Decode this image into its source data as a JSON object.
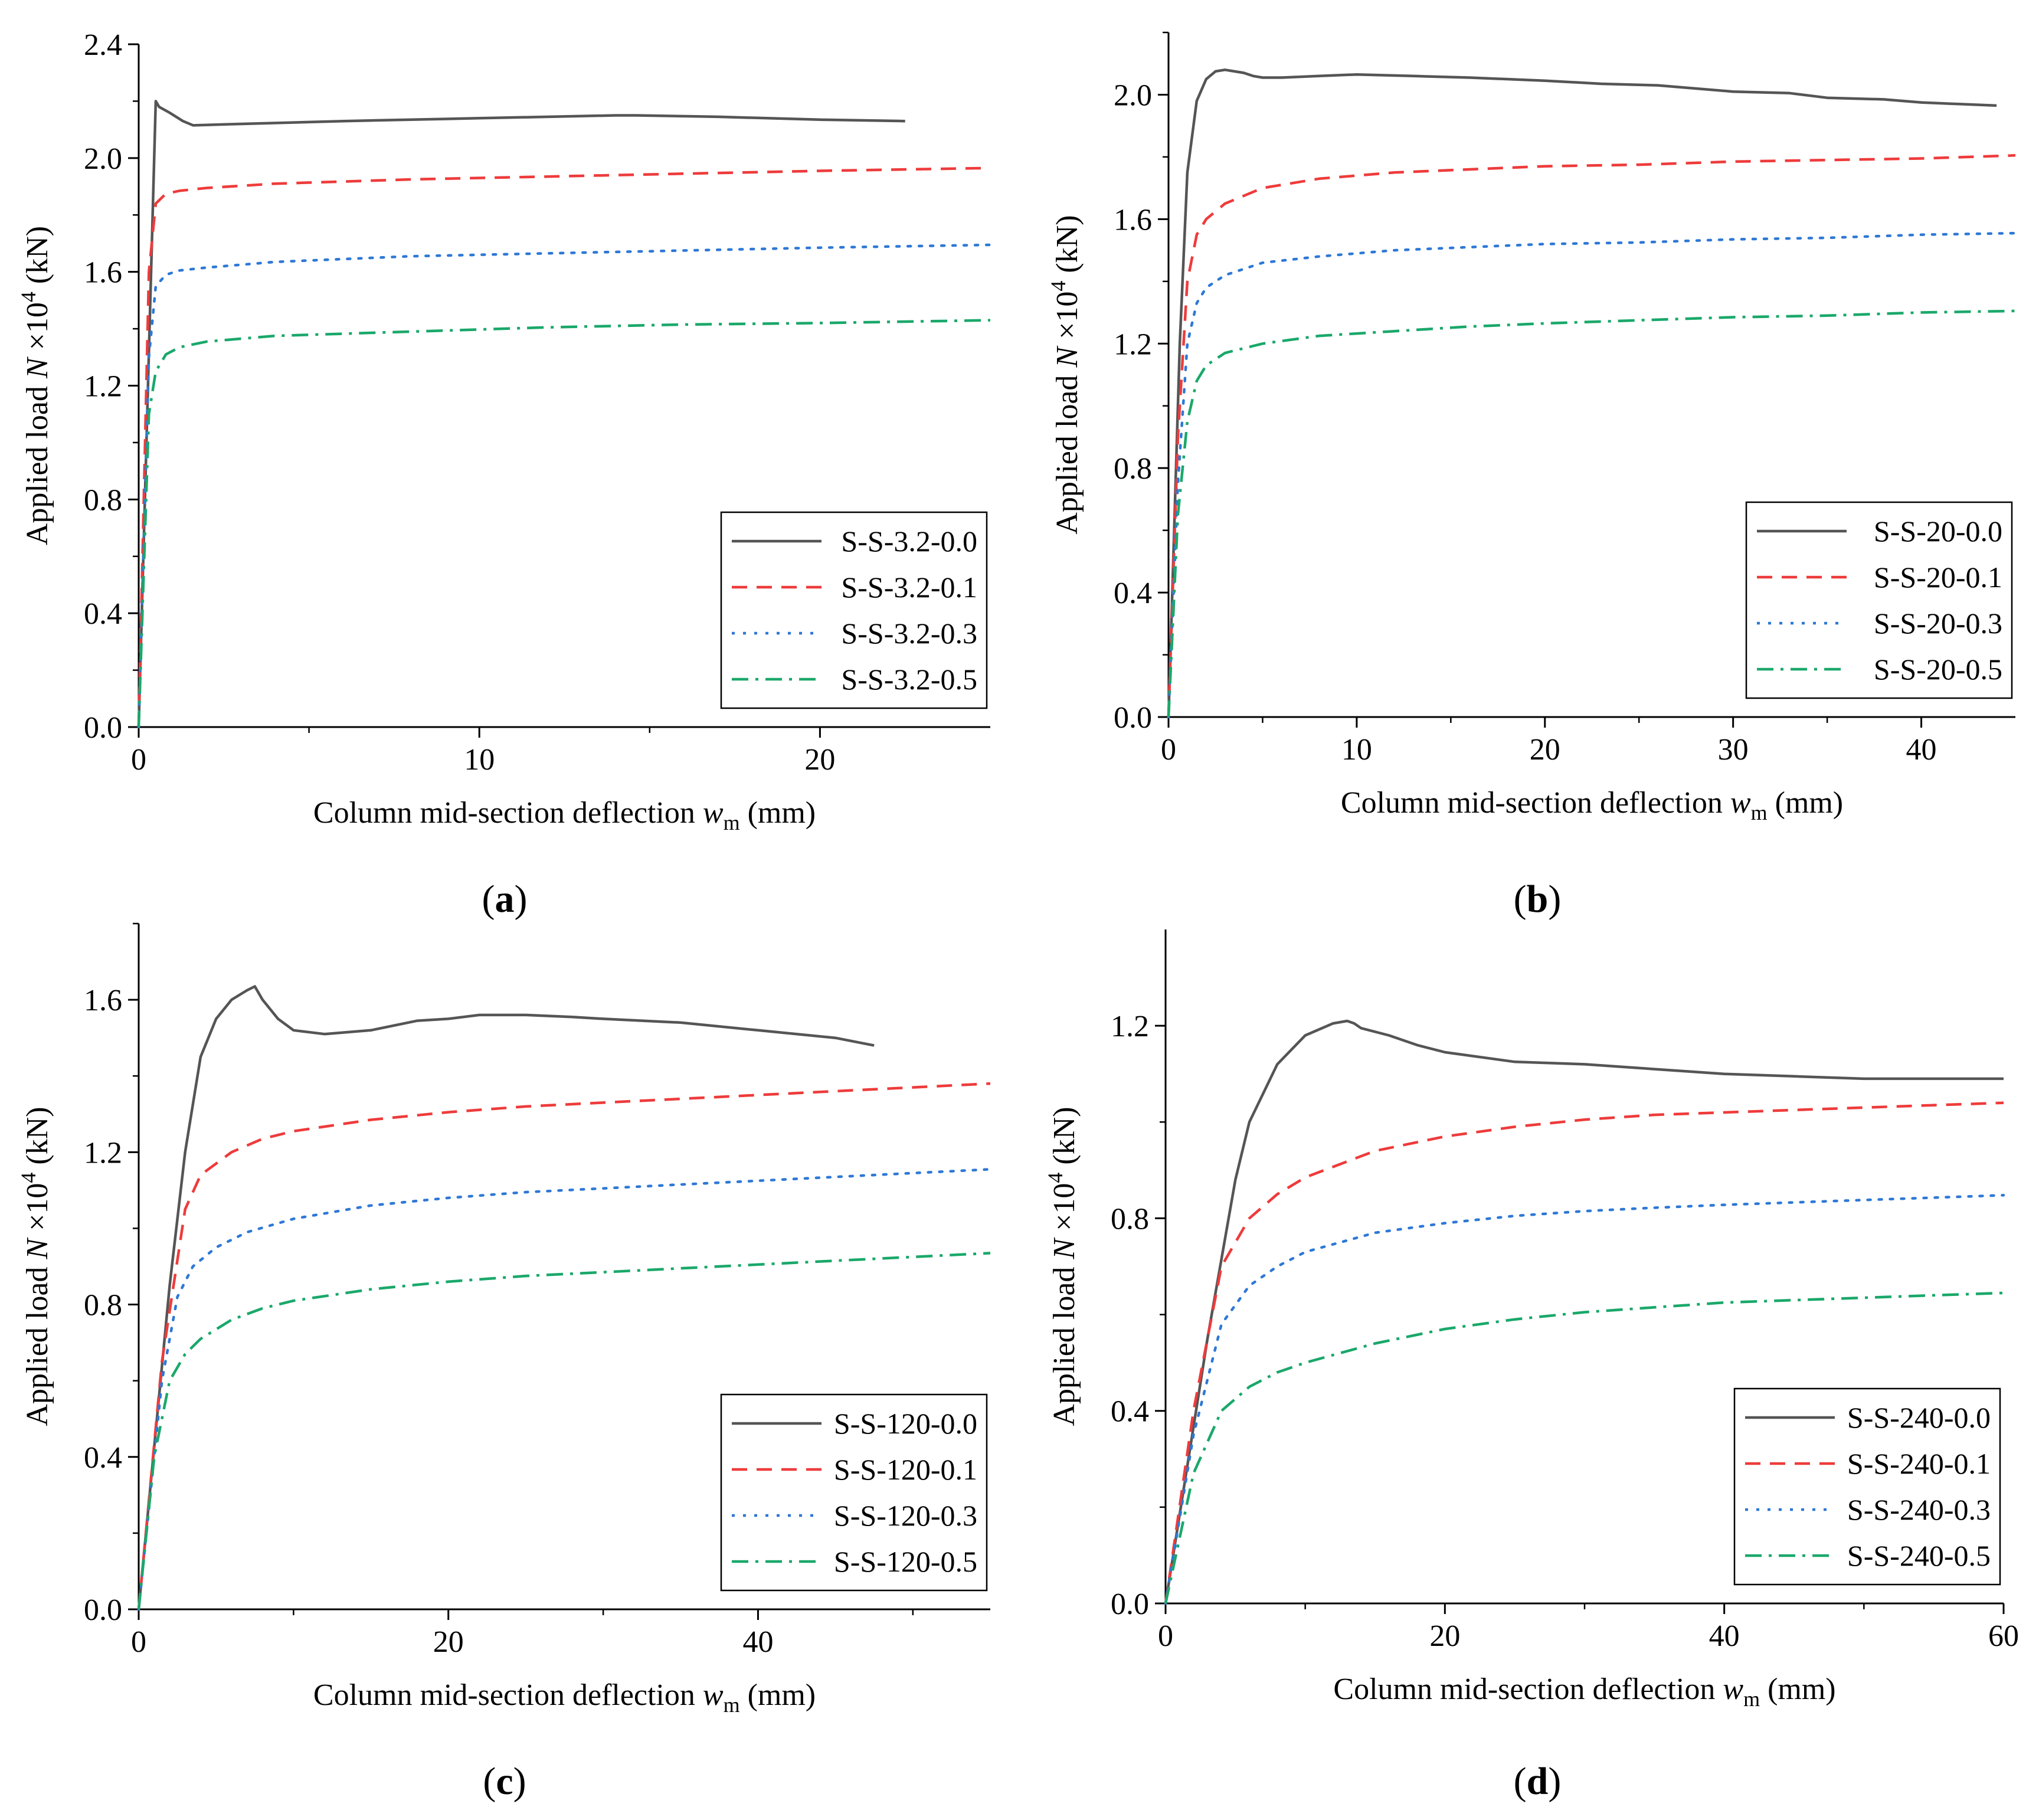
{
  "colors": {
    "s00": "#555555",
    "s01": "#ee3b3b",
    "s03": "#2e78d6",
    "s05": "#1aa86a"
  },
  "chart_data": [
    {
      "type": "line",
      "panel_label": "a",
      "xlabel_prefix": "Column mid-section deflection ",
      "xlabel_var": "w",
      "xlabel_sub": "m",
      "xlabel_suffix": " (mm)",
      "ylabel_prefix": "Applied load ",
      "ylabel_var": "N",
      "ylabel_mid": " ×10",
      "ylabel_sup": "4",
      "ylabel_suffix": " (kN)",
      "xlim": [
        0,
        25
      ],
      "ylim": [
        0,
        2.4
      ],
      "xticks": [
        0,
        10,
        20
      ],
      "xtick_labels": [
        "0",
        "10",
        "20"
      ],
      "yticks": [
        0,
        0.4,
        0.8,
        1.2,
        1.6,
        2.0,
        2.4
      ],
      "ytick_labels": [
        "0.0",
        "0.4",
        "0.8",
        "1.2",
        "1.6",
        "2.0",
        "2.4"
      ],
      "legend_position": "bottom-right",
      "series": [
        {
          "name": "S-S-3.2-0.0",
          "style": "solid",
          "color_key": "s00",
          "x": [
            0,
            0.5,
            0.6,
            0.9,
            1.3,
            1.6,
            3,
            6,
            10,
            14,
            14.6,
            17,
            20,
            22.5
          ],
          "y": [
            0,
            2.2,
            2.18,
            2.16,
            2.13,
            2.115,
            2.12,
            2.13,
            2.14,
            2.15,
            2.15,
            2.145,
            2.135,
            2.13
          ]
        },
        {
          "name": "S-S-3.2-0.1",
          "style": "dashed",
          "color_key": "s01",
          "x": [
            0,
            0.3,
            0.5,
            0.8,
            1.2,
            2,
            4,
            8,
            12,
            16,
            20,
            25
          ],
          "y": [
            0,
            1.6,
            1.84,
            1.875,
            1.885,
            1.895,
            1.91,
            1.925,
            1.935,
            1.945,
            1.955,
            1.965
          ]
        },
        {
          "name": "S-S-3.2-0.3",
          "style": "dotted",
          "color_key": "s03",
          "x": [
            0,
            0.3,
            0.5,
            0.8,
            1.2,
            2,
            4,
            8,
            12,
            16,
            20,
            25
          ],
          "y": [
            0,
            1.3,
            1.55,
            1.59,
            1.605,
            1.615,
            1.635,
            1.655,
            1.665,
            1.675,
            1.685,
            1.695
          ]
        },
        {
          "name": "S-S-3.2-0.5",
          "style": "dashdot",
          "color_key": "s05",
          "x": [
            0,
            0.3,
            0.5,
            0.8,
            1.2,
            2,
            4,
            8,
            12,
            16,
            20,
            25
          ],
          "y": [
            0,
            1.1,
            1.25,
            1.31,
            1.335,
            1.355,
            1.375,
            1.39,
            1.405,
            1.415,
            1.42,
            1.43
          ]
        }
      ]
    },
    {
      "type": "line",
      "panel_label": "b",
      "xlabel_prefix": "Column mid-section deflection ",
      "xlabel_var": "w",
      "xlabel_sub": "m",
      "xlabel_suffix": " (mm)",
      "ylabel_prefix": "Applied load ",
      "ylabel_var": "N",
      "ylabel_mid": " ×10",
      "ylabel_sup": "4",
      "ylabel_suffix": " (kN)",
      "xlim": [
        0,
        45
      ],
      "ylim": [
        0,
        2.2
      ],
      "xticks": [
        0,
        10,
        20,
        30,
        40
      ],
      "xtick_labels": [
        "0",
        "10",
        "20",
        "30",
        "40"
      ],
      "yticks": [
        0,
        0.4,
        0.8,
        1.2,
        1.6,
        2.0
      ],
      "ytick_labels": [
        "0.0",
        "0.4",
        "0.8",
        "1.2",
        "1.6",
        "2.0"
      ],
      "legend_position": "bottom-right",
      "series": [
        {
          "name": "S-S-20-0.0",
          "style": "solid",
          "color_key": "s00",
          "x": [
            0,
            0.6,
            1.0,
            1.5,
            2.0,
            2.5,
            3.0,
            3.5,
            4.0,
            4.5,
            5,
            6,
            8,
            10,
            13,
            16,
            20,
            23,
            26,
            30,
            33,
            35,
            38,
            40,
            42,
            44
          ],
          "y": [
            0,
            1.2,
            1.75,
            1.98,
            2.05,
            2.075,
            2.08,
            2.075,
            2.07,
            2.06,
            2.055,
            2.055,
            2.06,
            2.065,
            2.06,
            2.055,
            2.045,
            2.035,
            2.03,
            2.01,
            2.005,
            1.99,
            1.985,
            1.975,
            1.97,
            1.965
          ]
        },
        {
          "name": "S-S-20-0.1",
          "style": "dashed",
          "color_key": "s01",
          "x": [
            0,
            0.5,
            1.0,
            1.5,
            2,
            3,
            5,
            8,
            12,
            16,
            20,
            25,
            30,
            35,
            40,
            45
          ],
          "y": [
            0,
            0.9,
            1.4,
            1.55,
            1.6,
            1.65,
            1.7,
            1.73,
            1.75,
            1.76,
            1.77,
            1.775,
            1.785,
            1.79,
            1.795,
            1.805
          ]
        },
        {
          "name": "S-S-20-0.3",
          "style": "dotted",
          "color_key": "s03",
          "x": [
            0,
            0.5,
            1.0,
            1.5,
            2,
            3,
            5,
            8,
            12,
            16,
            20,
            25,
            30,
            35,
            40,
            45
          ],
          "y": [
            0,
            0.75,
            1.2,
            1.33,
            1.38,
            1.42,
            1.46,
            1.48,
            1.5,
            1.51,
            1.52,
            1.525,
            1.535,
            1.54,
            1.55,
            1.555
          ]
        },
        {
          "name": "S-S-20-0.5",
          "style": "dashdot",
          "color_key": "s05",
          "x": [
            0,
            0.5,
            1.0,
            1.5,
            2,
            3,
            5,
            8,
            12,
            16,
            20,
            25,
            30,
            35,
            40,
            45
          ],
          "y": [
            0,
            0.65,
            0.95,
            1.08,
            1.13,
            1.17,
            1.2,
            1.225,
            1.24,
            1.255,
            1.265,
            1.275,
            1.285,
            1.29,
            1.3,
            1.305
          ]
        }
      ]
    },
    {
      "type": "line",
      "panel_label": "c",
      "xlabel_prefix": "Column mid-section deflection ",
      "xlabel_var": "w",
      "xlabel_sub": "m",
      "xlabel_suffix": " (mm)",
      "ylabel_prefix": "Applied load ",
      "ylabel_var": "N",
      "ylabel_mid": " ×10",
      "ylabel_sup": "4",
      "ylabel_suffix": " (kN)",
      "xlim": [
        0,
        55
      ],
      "ylim": [
        0,
        1.8
      ],
      "xticks": [
        0,
        20,
        40
      ],
      "xtick_labels": [
        "0",
        "20",
        "40"
      ],
      "yticks": [
        0,
        0.4,
        0.8,
        1.2,
        1.6
      ],
      "ytick_labels": [
        "0.0",
        "0.4",
        "0.8",
        "1.2",
        "1.6"
      ],
      "legend_position": "bottom-right",
      "series": [
        {
          "name": "S-S-120-0.0",
          "style": "solid",
          "color_key": "s00",
          "x": [
            0,
            2,
            3,
            4,
            5,
            6,
            7,
            7.5,
            8,
            9,
            10,
            12,
            15,
            18,
            20,
            22,
            25,
            28,
            30,
            35,
            40,
            45,
            47.5
          ],
          "y": [
            0,
            0.85,
            1.2,
            1.45,
            1.55,
            1.6,
            1.625,
            1.635,
            1.6,
            1.55,
            1.52,
            1.51,
            1.52,
            1.545,
            1.55,
            1.56,
            1.56,
            1.555,
            1.55,
            1.54,
            1.52,
            1.5,
            1.48
          ]
        },
        {
          "name": "S-S-120-0.1",
          "style": "dashed",
          "color_key": "s01",
          "x": [
            0,
            1.5,
            3,
            4,
            6,
            8,
            10,
            15,
            20,
            25,
            30,
            35,
            40,
            45,
            50,
            55
          ],
          "y": [
            0,
            0.65,
            1.05,
            1.14,
            1.2,
            1.235,
            1.255,
            1.285,
            1.305,
            1.32,
            1.33,
            1.34,
            1.35,
            1.36,
            1.37,
            1.38
          ]
        },
        {
          "name": "S-S-120-0.3",
          "style": "dotted",
          "color_key": "s03",
          "x": [
            0,
            1.5,
            2.5,
            3.5,
            5,
            7,
            10,
            15,
            20,
            25,
            30,
            35,
            40,
            45,
            50,
            55
          ],
          "y": [
            0,
            0.6,
            0.82,
            0.9,
            0.95,
            0.99,
            1.025,
            1.06,
            1.08,
            1.095,
            1.105,
            1.115,
            1.125,
            1.135,
            1.145,
            1.155
          ]
        },
        {
          "name": "S-S-120-0.5",
          "style": "dashdot",
          "color_key": "s05",
          "x": [
            0,
            1,
            2,
            3,
            4,
            6,
            8,
            10,
            15,
            20,
            25,
            30,
            35,
            40,
            45,
            50,
            55
          ],
          "y": [
            0,
            0.4,
            0.6,
            0.67,
            0.71,
            0.76,
            0.79,
            0.81,
            0.84,
            0.86,
            0.875,
            0.885,
            0.895,
            0.905,
            0.915,
            0.925,
            0.935
          ]
        }
      ]
    },
    {
      "type": "line",
      "panel_label": "d",
      "xlabel_prefix": "Column mid-section deflection ",
      "xlabel_var": "w",
      "xlabel_sub": "m",
      "xlabel_suffix": " (mm)",
      "ylabel_prefix": "Applied load ",
      "ylabel_var": "N",
      "ylabel_mid": " ×10",
      "ylabel_sup": "4",
      "ylabel_suffix": " (kN)",
      "xlim": [
        0,
        60
      ],
      "ylim": [
        0,
        1.4
      ],
      "xticks": [
        0,
        20,
        40,
        60
      ],
      "xtick_labels": [
        "0",
        "20",
        "40",
        "60"
      ],
      "yticks": [
        0,
        0.4,
        0.8,
        1.2
      ],
      "ytick_labels": [
        "0.0",
        "0.4",
        "0.8",
        "1.2"
      ],
      "legend_position": "bottom-right",
      "series": [
        {
          "name": "S-S-240-0.0",
          "style": "solid",
          "color_key": "s00",
          "x": [
            0,
            3,
            5,
            6,
            8,
            10,
            12,
            13,
            13.5,
            14,
            16,
            18,
            20,
            25,
            30,
            35,
            40,
            45,
            50,
            55,
            60
          ],
          "y": [
            0,
            0.55,
            0.88,
            1.0,
            1.12,
            1.18,
            1.205,
            1.21,
            1.205,
            1.195,
            1.18,
            1.16,
            1.145,
            1.125,
            1.12,
            1.11,
            1.1,
            1.095,
            1.09,
            1.09,
            1.09
          ]
        },
        {
          "name": "S-S-240-0.1",
          "style": "dashed",
          "color_key": "s01",
          "x": [
            0,
            2,
            4,
            6,
            8,
            10,
            15,
            20,
            25,
            30,
            35,
            40,
            45,
            50,
            55,
            60
          ],
          "y": [
            0,
            0.4,
            0.7,
            0.8,
            0.85,
            0.885,
            0.94,
            0.97,
            0.99,
            1.005,
            1.015,
            1.02,
            1.025,
            1.03,
            1.035,
            1.04
          ]
        },
        {
          "name": "S-S-240-0.3",
          "style": "dotted",
          "color_key": "s03",
          "x": [
            0,
            2,
            4,
            6,
            8,
            10,
            15,
            20,
            25,
            30,
            35,
            40,
            45,
            50,
            55,
            60
          ],
          "y": [
            0,
            0.35,
            0.58,
            0.66,
            0.7,
            0.73,
            0.77,
            0.79,
            0.805,
            0.815,
            0.822,
            0.828,
            0.833,
            0.838,
            0.843,
            0.848
          ]
        },
        {
          "name": "S-S-240-0.5",
          "style": "dashdot",
          "color_key": "s05",
          "x": [
            0,
            2,
            4,
            6,
            8,
            10,
            15,
            20,
            25,
            30,
            35,
            40,
            45,
            50,
            55,
            60
          ],
          "y": [
            0,
            0.27,
            0.4,
            0.45,
            0.48,
            0.5,
            0.54,
            0.57,
            0.59,
            0.605,
            0.615,
            0.625,
            0.63,
            0.635,
            0.64,
            0.645
          ]
        }
      ]
    }
  ]
}
